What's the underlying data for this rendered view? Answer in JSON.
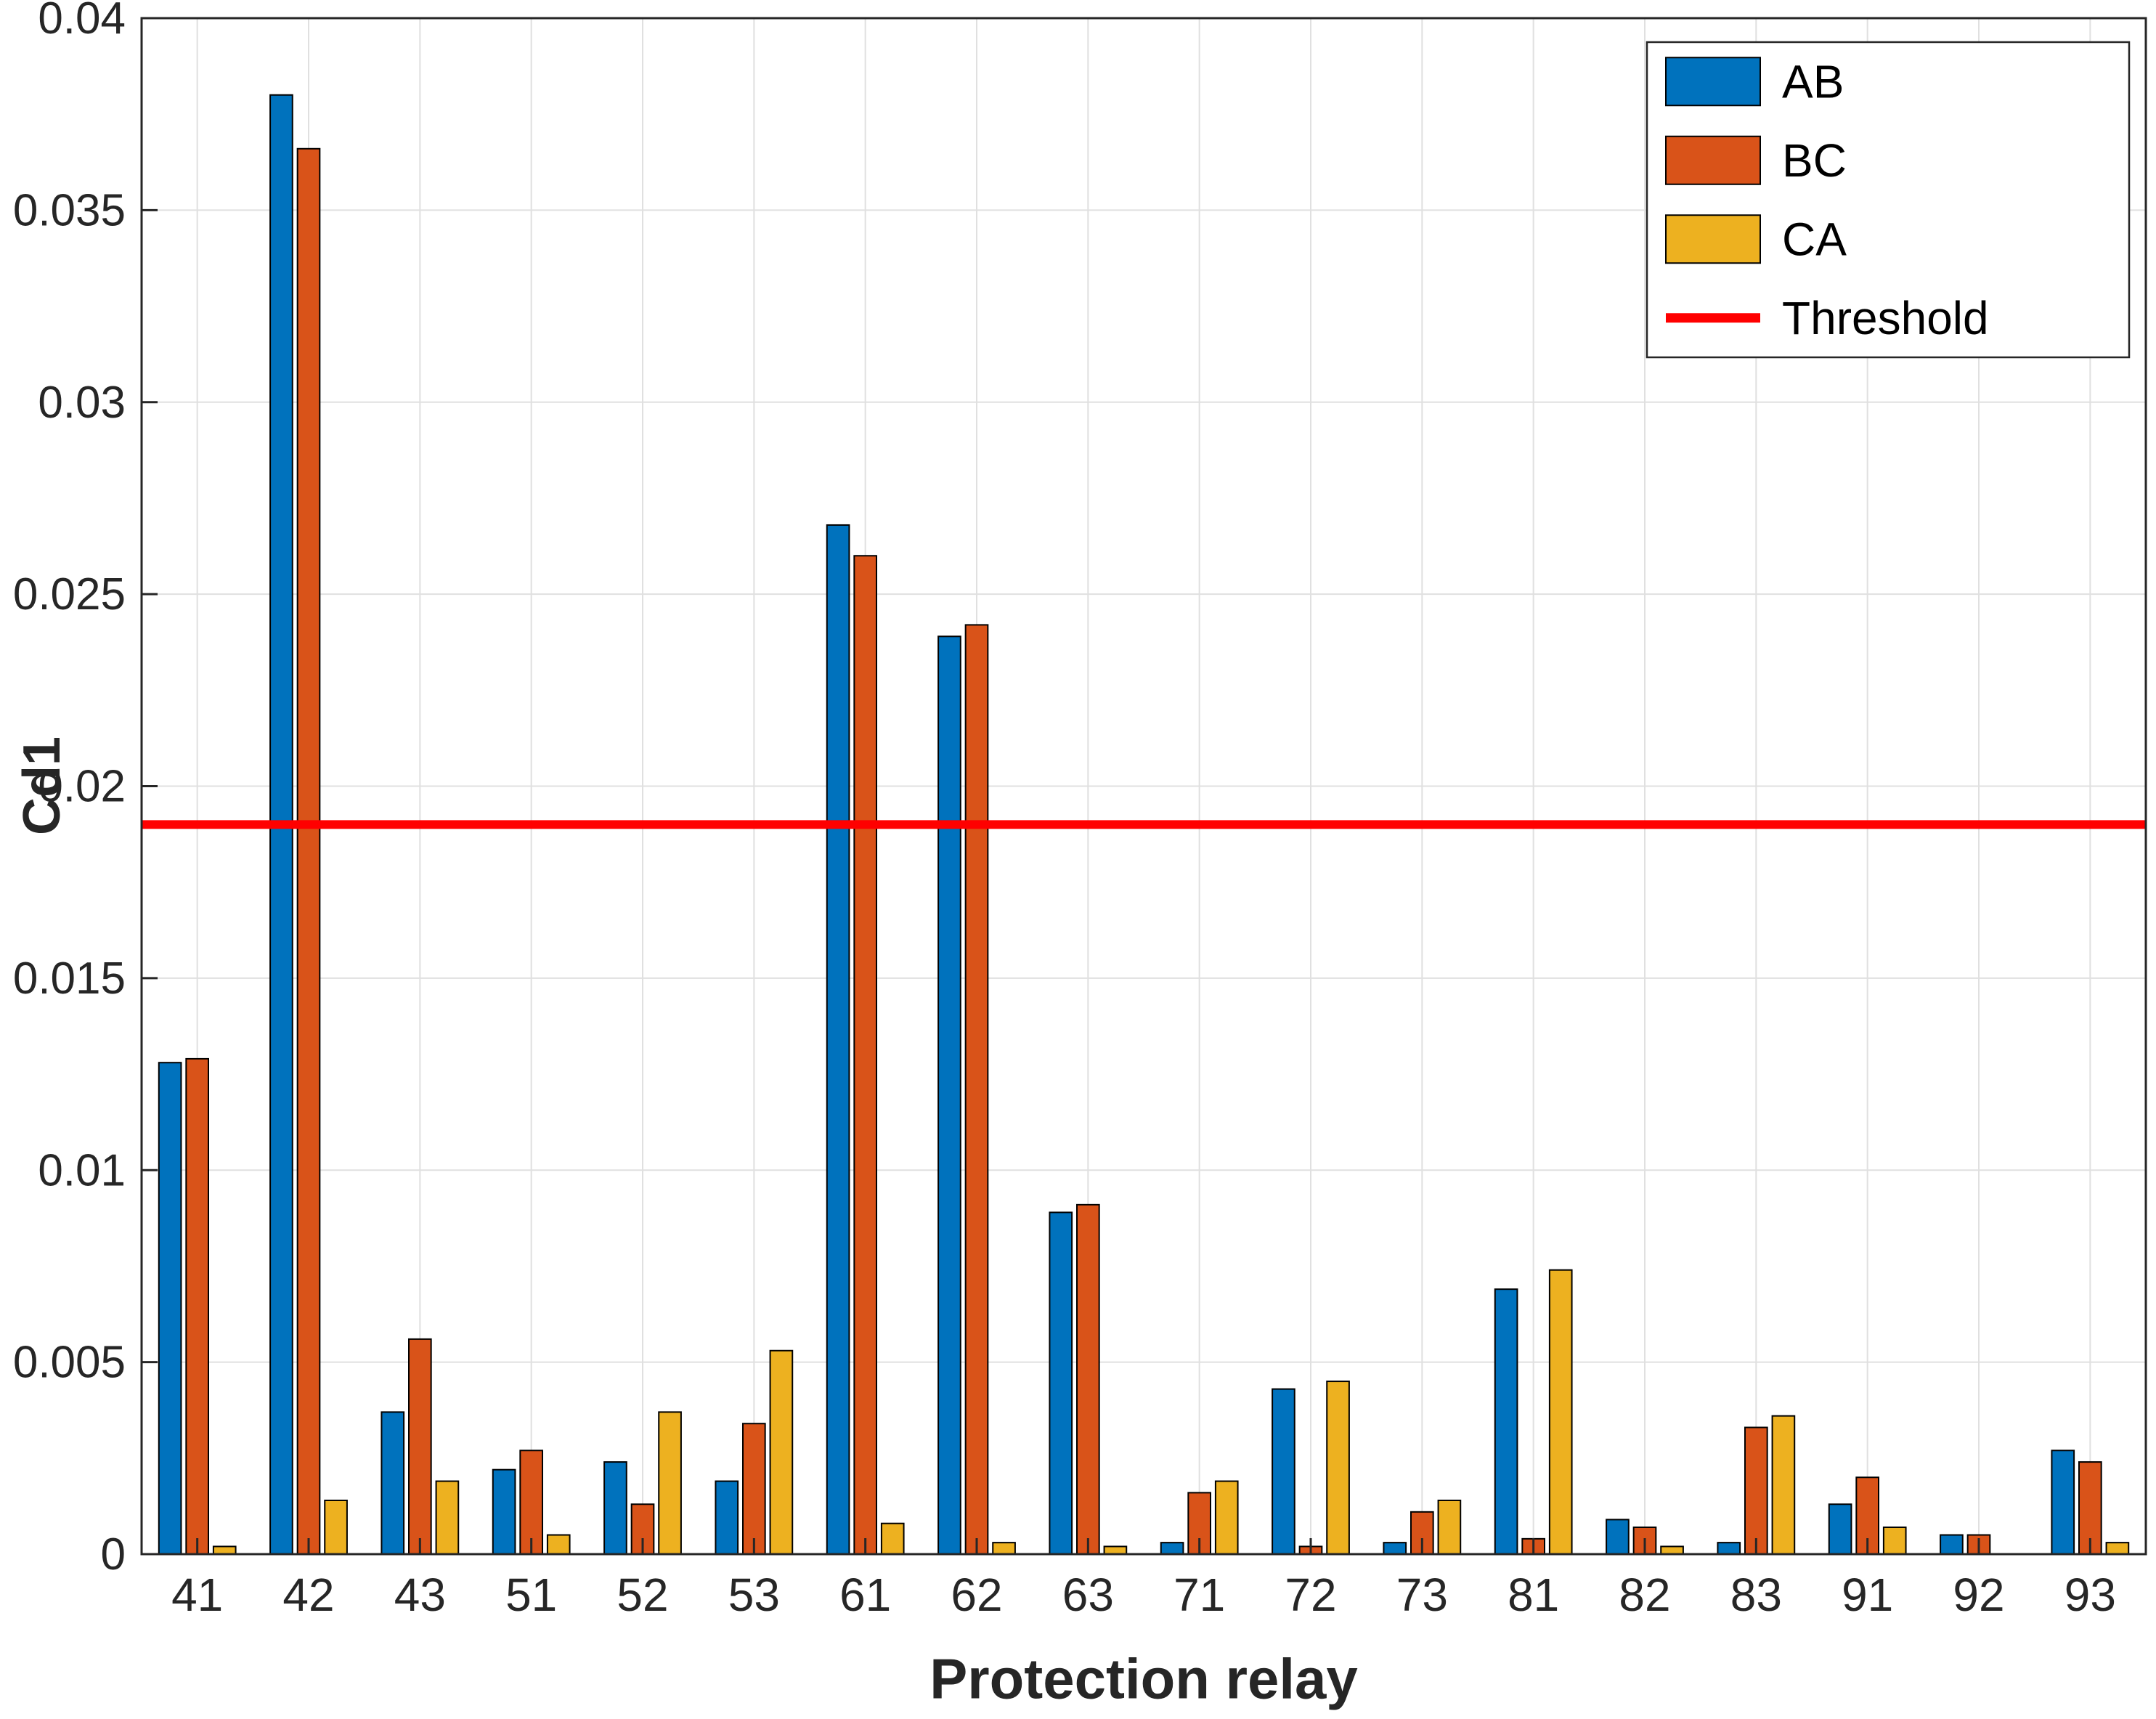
{
  "chart_data": {
    "type": "bar",
    "title": "",
    "xlabel": "Protection relay",
    "ylabel": "Cd1",
    "categories": [
      "41",
      "42",
      "43",
      "51",
      "52",
      "53",
      "61",
      "62",
      "63",
      "71",
      "72",
      "73",
      "81",
      "82",
      "83",
      "91",
      "92",
      "93"
    ],
    "series": [
      {
        "name": "AB",
        "color": "#0072BD",
        "values": [
          0.0128,
          0.038,
          0.0037,
          0.0022,
          0.0024,
          0.0019,
          0.0268,
          0.0239,
          0.0089,
          0.0003,
          0.0043,
          0.0003,
          0.0069,
          0.0009,
          0.0003,
          0.0013,
          0.0005,
          0.0027
        ]
      },
      {
        "name": "BC",
        "color": "#D95319",
        "values": [
          0.0129,
          0.0366,
          0.0056,
          0.0027,
          0.0013,
          0.0034,
          0.026,
          0.0242,
          0.0091,
          0.0016,
          0.0002,
          0.0011,
          0.0004,
          0.0007,
          0.0033,
          0.002,
          0.0005,
          0.0024
        ]
      },
      {
        "name": "CA",
        "color": "#EDB120",
        "values": [
          0.0002,
          0.0014,
          0.0019,
          0.0005,
          0.0037,
          0.0053,
          0.0008,
          0.0003,
          0.0002,
          0.0019,
          0.0045,
          0.0014,
          0.0074,
          0.0002,
          0.0036,
          0.0007,
          0.0,
          0.0003
        ]
      }
    ],
    "threshold": {
      "label": "Threshold",
      "value": 0.019,
      "color": "#FF0000"
    },
    "ylim": [
      0,
      0.04
    ],
    "yticks": [
      0,
      0.005,
      0.01,
      0.015,
      0.02,
      0.025,
      0.03,
      0.035,
      0.04
    ],
    "ytick_labels": [
      "0",
      "0.005",
      "0.01",
      "0.015",
      "0.02",
      "0.025",
      "0.03",
      "0.035",
      "0.04"
    ],
    "grid": true,
    "legend_position": "top-right",
    "axis_color": "#262626",
    "grid_color": "#e0e0e0",
    "bar_edge_color": "#000000"
  }
}
